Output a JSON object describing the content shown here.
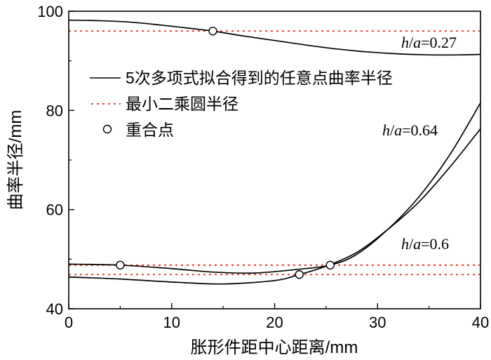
{
  "chart_data": {
    "type": "line",
    "xlabel": "胀形件距中心距离/mm",
    "ylabel": "曲率半径/mm",
    "xlim": [
      0,
      40
    ],
    "ylim": [
      40,
      100
    ],
    "x_ticks": [
      "0",
      "10",
      "20",
      "30",
      "40"
    ],
    "y_ticks": [
      "40",
      "60",
      "80",
      "100"
    ],
    "grid": false,
    "legend_position": "center-left",
    "legend": [
      {
        "label": "5次多项式拟合得到的任意点曲率半径",
        "style": "solid"
      },
      {
        "label": "最小二乘圆半径",
        "style": "dotted-red"
      },
      {
        "label": "重合点",
        "style": "open-circle"
      }
    ],
    "series": [
      {
        "name": "h/a=0.27",
        "curve": {
          "x": [
            0,
            3,
            6,
            9,
            12,
            14,
            17,
            20,
            23,
            26,
            29,
            32,
            35,
            38,
            40
          ],
          "y": [
            98.2,
            98.1,
            97.8,
            97.2,
            96.5,
            96.0,
            95.0,
            94.1,
            93.2,
            92.4,
            91.8,
            91.4,
            91.2,
            91.2,
            91.3
          ]
        },
        "least_squares_radius": 96.0,
        "coincident_points": [
          {
            "x": 14,
            "y": 96.0
          }
        ],
        "annotation": {
          "h": "h",
          "a": "a",
          "value": "=0.27"
        }
      },
      {
        "name": "h/a=0.64",
        "curve": {
          "x": [
            0,
            5,
            10,
            14,
            18,
            22,
            25.4,
            28,
            31,
            34,
            37,
            40
          ],
          "y": [
            49.0,
            48.8,
            48.1,
            47.4,
            47.2,
            47.9,
            48.8,
            51.0,
            56.0,
            62.5,
            71.0,
            81.5
          ]
        },
        "least_squares_radius": 48.8,
        "coincident_points": [
          {
            "x": 5,
            "y": 48.8
          },
          {
            "x": 25.4,
            "y": 48.8
          }
        ],
        "annotation": {
          "h": "h",
          "a": "a",
          "value": "=0.64"
        }
      },
      {
        "name": "h/a=0.6",
        "curve": {
          "x": [
            0,
            5,
            10,
            15,
            20,
            22.4,
            25,
            28,
            31,
            34,
            37,
            40
          ],
          "y": [
            46.4,
            46.0,
            45.4,
            45.0,
            45.7,
            46.9,
            48.6,
            51.4,
            56.0,
            61.5,
            68.5,
            76.3
          ]
        },
        "least_squares_radius": 46.9,
        "coincident_points": [
          {
            "x": 22.4,
            "y": 46.9
          }
        ],
        "annotation": {
          "h": "h",
          "a": "a",
          "value": "=0.6"
        }
      }
    ]
  }
}
